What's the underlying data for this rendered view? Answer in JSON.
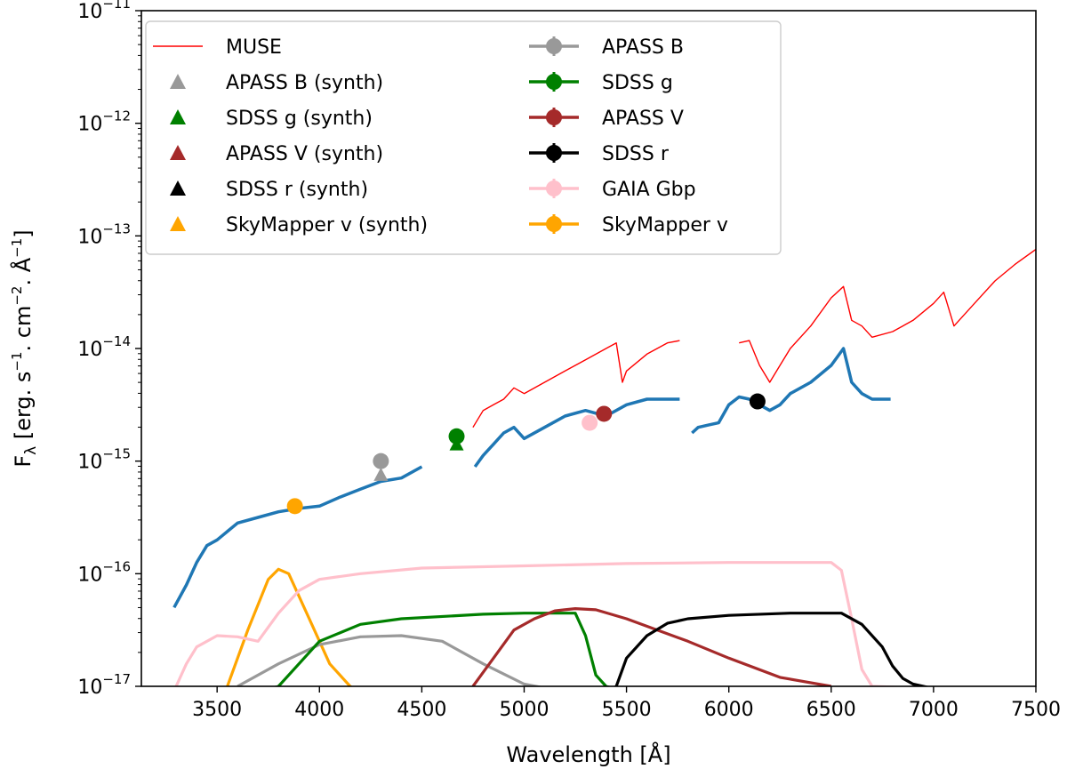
{
  "chart_data": {
    "type": "line",
    "title": "",
    "xlabel": "Wavelength [Å]",
    "ylabel": "F",
    "ylabel_sub": "λ",
    "ylabel_units": " [erg. s",
    "ylabel_units2": ". cm",
    "ylabel_units3": ". Å",
    "ylabel_exp1": "−1",
    "ylabel_exp2": "−2",
    "ylabel_exp3": "−1",
    "ylabel_end": "]",
    "xlim": [
      3130,
      7500
    ],
    "ylim_log10": [
      -17,
      -11
    ],
    "y_scale": "log",
    "x_ticks": [
      3500,
      4000,
      4500,
      5000,
      5500,
      6000,
      6500,
      7000,
      7500
    ],
    "y_ticks": [
      {
        "base": "10",
        "exp": "−11",
        "log": -11
      },
      {
        "base": "10",
        "exp": "−12",
        "log": -12
      },
      {
        "base": "10",
        "exp": "−13",
        "log": -13
      },
      {
        "base": "10",
        "exp": "−14",
        "log": -14
      },
      {
        "base": "10",
        "exp": "−15",
        "log": -15
      },
      {
        "base": "10",
        "exp": "−16",
        "log": -16
      },
      {
        "base": "10",
        "exp": "−17",
        "log": -17
      }
    ],
    "legend_placement": "top-left",
    "legend": [
      {
        "label": "MUSE",
        "kind": "line",
        "color": "#ff0000"
      },
      {
        "label": "APASS B (synth)",
        "kind": "triangle",
        "color": "#999999"
      },
      {
        "label": "SDSS g (synth)",
        "kind": "triangle",
        "color": "#008000"
      },
      {
        "label": "APASS V (synth)",
        "kind": "triangle",
        "color": "#a52a2a"
      },
      {
        "label": "SDSS r (synth)",
        "kind": "triangle",
        "color": "#000000"
      },
      {
        "label": "SkyMapper v (synth)",
        "kind": "triangle",
        "color": "#ffa500"
      },
      {
        "label": "APASS B",
        "kind": "errorbar",
        "color": "#999999"
      },
      {
        "label": "SDSS g",
        "kind": "errorbar",
        "color": "#008000"
      },
      {
        "label": "APASS V",
        "kind": "errorbar",
        "color": "#a52a2a"
      },
      {
        "label": "SDSS r",
        "kind": "errorbar",
        "color": "#000000"
      },
      {
        "label": "GAIA Gbp",
        "kind": "errorbar",
        "color": "#ffc0cb"
      },
      {
        "label": "SkyMapper v",
        "kind": "errorbar",
        "color": "#ffa500"
      }
    ],
    "spectrum": {
      "color": "#1f77b4",
      "segments": [
        {
          "x": [
            3290,
            3350,
            3400,
            3450,
            3500,
            3600,
            3700,
            3800,
            3900,
            4000,
            4100,
            4200,
            4300,
            4400,
            4500
          ],
          "y_log": [
            -16.3,
            -16.1,
            -15.9,
            -15.75,
            -15.7,
            -15.55,
            -15.5,
            -15.45,
            -15.42,
            -15.4,
            -15.32,
            -15.25,
            -15.18,
            -15.15,
            -15.05
          ]
        },
        {
          "x": [
            4760,
            4800,
            4850,
            4900,
            4950,
            5000,
            5100,
            5200,
            5300,
            5400,
            5500,
            5600,
            5700,
            5760
          ],
          "y_log": [
            -15.05,
            -14.95,
            -14.85,
            -14.75,
            -14.7,
            -14.8,
            -14.7,
            -14.6,
            -14.55,
            -14.6,
            -14.5,
            -14.45,
            -14.45,
            -14.45
          ]
        },
        {
          "x": [
            5820,
            5850,
            5900,
            5950,
            6000,
            6050,
            6100,
            6150,
            6200,
            6250,
            6300,
            6400,
            6500,
            6560,
            6600,
            6650,
            6700,
            6790
          ],
          "y_log": [
            -14.75,
            -14.7,
            -14.68,
            -14.66,
            -14.5,
            -14.43,
            -14.45,
            -14.5,
            -14.55,
            -14.5,
            -14.4,
            -14.3,
            -14.15,
            -14.0,
            -14.3,
            -14.4,
            -14.45,
            -14.45
          ]
        }
      ]
    },
    "muse": {
      "color": "#ff0000",
      "segments": [
        {
          "x": [
            4750,
            4800,
            4850,
            4900,
            4950,
            5000,
            5100,
            5200,
            5300,
            5400,
            5450,
            5480,
            5500,
            5600,
            5700,
            5760
          ],
          "y_log": [
            -14.7,
            -14.55,
            -14.5,
            -14.45,
            -14.35,
            -14.4,
            -14.3,
            -14.2,
            -14.1,
            -14.0,
            -13.95,
            -14.3,
            -14.2,
            -14.05,
            -13.95,
            -13.93
          ]
        },
        {
          "x": [
            6050,
            6100,
            6150,
            6200,
            6250,
            6300,
            6400,
            6500,
            6560,
            6600,
            6650,
            6700,
            6800,
            6900,
            7000,
            7050,
            7100,
            7200,
            7300,
            7400,
            7500
          ],
          "y_log": [
            -13.95,
            -13.93,
            -14.15,
            -14.3,
            -14.15,
            -14.0,
            -13.8,
            -13.55,
            -13.45,
            -13.75,
            -13.8,
            -13.9,
            -13.85,
            -13.75,
            -13.6,
            -13.5,
            -13.8,
            -13.6,
            -13.4,
            -13.25,
            -13.12
          ]
        }
      ]
    },
    "filters": [
      {
        "name": "SkyMapper v",
        "color": "#ffa500",
        "x": [
          3550,
          3650,
          3750,
          3800,
          3850,
          3950,
          4050,
          4150,
          4250
        ],
        "y_log": [
          -17.0,
          -16.5,
          -16.05,
          -15.96,
          -16.0,
          -16.4,
          -16.8,
          -17.0,
          -17.1
        ]
      },
      {
        "name": "GAIA Gbp",
        "color": "#ffc0cb",
        "x": [
          3300,
          3350,
          3400,
          3500,
          3600,
          3700,
          3800,
          3900,
          4000,
          4200,
          4500,
          5000,
          5500,
          6000,
          6500,
          6550,
          6600,
          6650,
          6700,
          7000,
          7250
        ],
        "y_log": [
          -17.0,
          -16.8,
          -16.65,
          -16.55,
          -16.56,
          -16.6,
          -16.35,
          -16.15,
          -16.05,
          -16.0,
          -15.95,
          -15.93,
          -15.91,
          -15.9,
          -15.9,
          -15.97,
          -16.4,
          -16.85,
          -17.0,
          -17.02,
          -17.02
        ]
      },
      {
        "name": "APASS B",
        "color": "#999999",
        "x": [
          3600,
          3800,
          4000,
          4200,
          4400,
          4600,
          4800,
          5000,
          5200
        ],
        "y_log": [
          -17.0,
          -16.8,
          -16.63,
          -16.56,
          -16.55,
          -16.6,
          -16.8,
          -16.98,
          -17.05
        ]
      },
      {
        "name": "SDSS g",
        "color": "#008000",
        "x": [
          3700,
          3800,
          4000,
          4200,
          4400,
          4800,
          5000,
          5250,
          5300,
          5350,
          5400,
          5500,
          5800
        ],
        "y_log": [
          -17.05,
          -17.0,
          -16.6,
          -16.45,
          -16.4,
          -16.36,
          -16.35,
          -16.35,
          -16.55,
          -16.9,
          -17.0,
          -17.05,
          -17.05
        ]
      },
      {
        "name": "APASS V",
        "color": "#a52a2a",
        "x": [
          4750,
          4850,
          4950,
          5050,
          5150,
          5250,
          5350,
          5500,
          5800,
          6000,
          6250,
          6500
        ],
        "y_log": [
          -17.0,
          -16.75,
          -16.5,
          -16.4,
          -16.33,
          -16.31,
          -16.32,
          -16.4,
          -16.6,
          -16.75,
          -16.92,
          -17.0
        ]
      },
      {
        "name": "SDSS r",
        "color": "#000000",
        "x": [
          5400,
          5450,
          5500,
          5600,
          5700,
          5800,
          6000,
          6300,
          6550,
          6650,
          6750,
          6800,
          6850,
          6900,
          7000,
          7250
        ],
        "y_log": [
          -17.05,
          -17.0,
          -16.75,
          -16.55,
          -16.44,
          -16.4,
          -16.37,
          -16.35,
          -16.35,
          -16.45,
          -16.65,
          -16.82,
          -16.93,
          -16.98,
          -17.02,
          -17.02
        ]
      }
    ],
    "photometry": [
      {
        "name": "APASS B",
        "color": "#999999",
        "x": 4300,
        "y_log": -15.0
      },
      {
        "name": "SDSS g",
        "color": "#008000",
        "x": 4670,
        "y_log": -14.78
      },
      {
        "name": "APASS V",
        "color": "#a52a2a",
        "x": 5390,
        "y_log": -14.58
      },
      {
        "name": "SDSS r",
        "color": "#000000",
        "x": 6140,
        "y_log": -14.47
      },
      {
        "name": "GAIA Gbp",
        "color": "#ffc0cb",
        "x": 5320,
        "y_log": -14.66
      },
      {
        "name": "SkyMapper v",
        "color": "#ffa500",
        "x": 3880,
        "y_log": -15.4
      }
    ],
    "synthetic": [
      {
        "name": "APASS B (synth)",
        "color": "#999999",
        "x": 4300,
        "y_log": -15.12
      },
      {
        "name": "SDSS g (synth)",
        "color": "#008000",
        "x": 4670,
        "y_log": -14.85
      }
    ]
  }
}
